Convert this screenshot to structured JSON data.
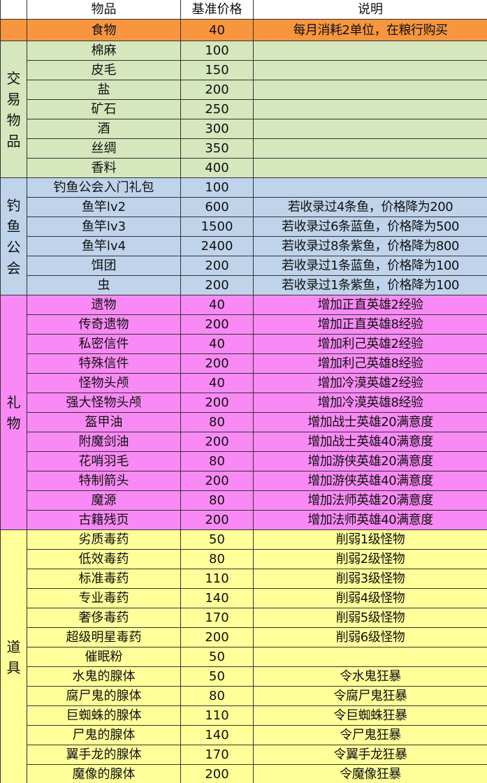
{
  "header": {
    "category": "",
    "item": "物品",
    "price": "基准价格",
    "desc": "说明"
  },
  "colors": {
    "food": "#F7963F",
    "trade": "#D6E6BD",
    "fishing": "#BFD4EB",
    "gifts": "#F98AF5",
    "tools": "#FFFF9A"
  },
  "groups": [
    {
      "key": "food",
      "label": "",
      "rows": [
        {
          "item": "食物",
          "price": "40",
          "desc": "每月消耗2单位，在粮行购买"
        }
      ]
    },
    {
      "key": "trade",
      "label": "交易物品",
      "rows": [
        {
          "item": "棉麻",
          "price": "100",
          "desc": ""
        },
        {
          "item": "皮毛",
          "price": "150",
          "desc": ""
        },
        {
          "item": "盐",
          "price": "200",
          "desc": ""
        },
        {
          "item": "矿石",
          "price": "250",
          "desc": ""
        },
        {
          "item": "酒",
          "price": "300",
          "desc": ""
        },
        {
          "item": "丝绸",
          "price": "350",
          "desc": ""
        },
        {
          "item": "香料",
          "price": "400",
          "desc": ""
        }
      ]
    },
    {
      "key": "fishing",
      "label": "钓鱼公会",
      "rows": [
        {
          "item": "钓鱼公会入门礼包",
          "price": "100",
          "desc": ""
        },
        {
          "item": "鱼竿lv2",
          "price": "600",
          "desc": "若收录过4条鱼，价格降为200"
        },
        {
          "item": "鱼竿lv3",
          "price": "1500",
          "desc": "若收录过6条蓝鱼，价格降为500"
        },
        {
          "item": "鱼竿lv4",
          "price": "2400",
          "desc": "若收录过8条紫鱼，价格降为800"
        },
        {
          "item": "饵团",
          "price": "200",
          "desc": "若收录过1条蓝鱼，价格降为100"
        },
        {
          "item": "虫",
          "price": "200",
          "desc": "若收录过1条紫鱼，价格降为100"
        }
      ]
    },
    {
      "key": "gifts",
      "label": "礼物",
      "rows": [
        {
          "item": "遗物",
          "price": "40",
          "desc": "增加正直英雄2经验"
        },
        {
          "item": "传奇遗物",
          "price": "200",
          "desc": "增加正直英雄8经验"
        },
        {
          "item": "私密信件",
          "price": "40",
          "desc": "增加利己英雄2经验"
        },
        {
          "item": "特殊信件",
          "price": "200",
          "desc": "增加利己英雄8经验"
        },
        {
          "item": "怪物头颅",
          "price": "40",
          "desc": "增加冷漠英雄2经验"
        },
        {
          "item": "强大怪物头颅",
          "price": "200",
          "desc": "增加冷漠英雄8经验"
        },
        {
          "item": "盔甲油",
          "price": "80",
          "desc": "增加战士英雄20满意度"
        },
        {
          "item": "附魔剑油",
          "price": "200",
          "desc": "增加战士英雄40满意度"
        },
        {
          "item": "花哨羽毛",
          "price": "80",
          "desc": "增加游侠英雄20满意度"
        },
        {
          "item": "特制箭头",
          "price": "200",
          "desc": "增加游侠英雄40满意度"
        },
        {
          "item": "魔源",
          "price": "80",
          "desc": "增加法师英雄20满意度"
        },
        {
          "item": "古籍残页",
          "price": "200",
          "desc": "增加法师英雄40满意度"
        }
      ]
    },
    {
      "key": "tools",
      "label": "道具",
      "rows": [
        {
          "item": "劣质毒药",
          "price": "50",
          "desc": "削弱1级怪物"
        },
        {
          "item": "低效毒药",
          "price": "80",
          "desc": "削弱2级怪物"
        },
        {
          "item": "标准毒药",
          "price": "110",
          "desc": "削弱3级怪物"
        },
        {
          "item": "专业毒药",
          "price": "140",
          "desc": "削弱4级怪物"
        },
        {
          "item": "奢侈毒药",
          "price": "170",
          "desc": "削弱5级怪物"
        },
        {
          "item": "超级明星毒药",
          "price": "200",
          "desc": "削弱6级怪物"
        },
        {
          "item": "催眠粉",
          "price": "50",
          "desc": ""
        },
        {
          "item": "水鬼的腺体",
          "price": "50",
          "desc": "令水鬼狂暴"
        },
        {
          "item": "腐尸鬼的腺体",
          "price": "80",
          "desc": "令腐尸鬼狂暴"
        },
        {
          "item": "巨蜘蛛的腺体",
          "price": "110",
          "desc": "令巨蜘蛛狂暴"
        },
        {
          "item": "尸鬼的腺体",
          "price": "140",
          "desc": "令尸鬼狂暴"
        },
        {
          "item": "翼手龙的腺体",
          "price": "170",
          "desc": "令翼手龙狂暴"
        },
        {
          "item": "魔像的腺体",
          "price": "200",
          "desc": "令魔像狂暴"
        }
      ]
    }
  ]
}
